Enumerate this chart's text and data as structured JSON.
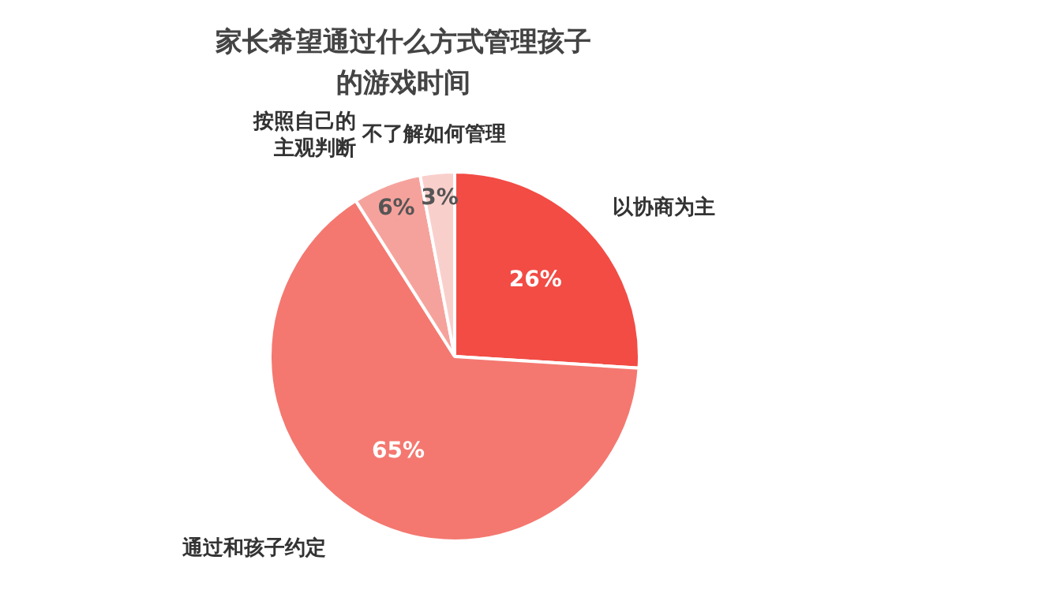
{
  "chart_data": {
    "type": "pie",
    "title": "家长希望通过什么方式管理孩子的游戏时间",
    "categories": [
      "以协商为主",
      "通过和孩子约定",
      "按照自己的主观判断",
      "不了解如何管理"
    ],
    "values": [
      26,
      65,
      6,
      3
    ],
    "colors": [
      "#f24c45",
      "#f47870",
      "#f6a29c",
      "#f9cfcc"
    ],
    "value_labels": [
      "26%",
      "65%",
      "6%",
      "3%"
    ],
    "legend": false
  }
}
